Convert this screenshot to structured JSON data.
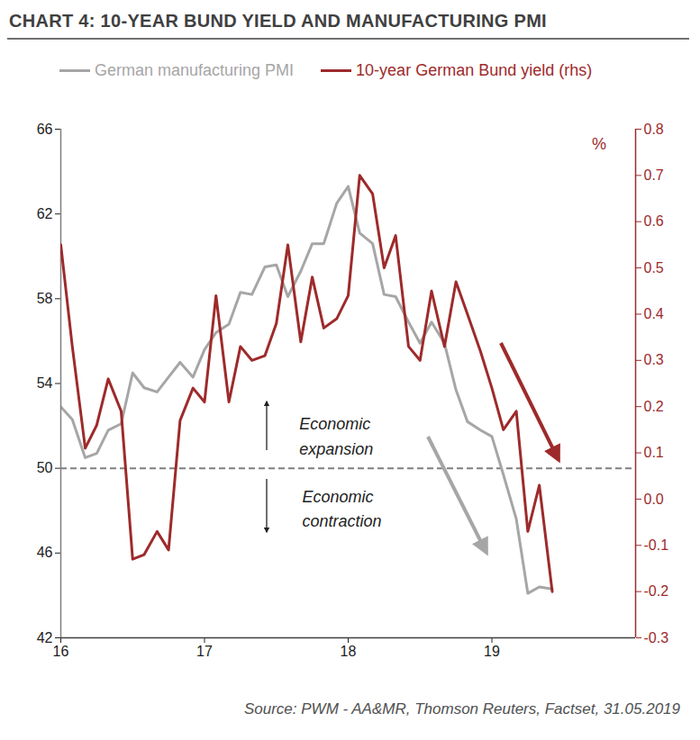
{
  "chart_data": {
    "type": "line",
    "title": "CHART 4: 10-YEAR BUND YIELD AND MANUFACTURING PMI",
    "source": "Source: PWM - AA&MR, Thomson Reuters, Factset, 31.05.2019",
    "x": [
      16,
      16.08,
      16.17,
      16.25,
      16.33,
      16.42,
      16.5,
      16.58,
      16.67,
      16.75,
      16.83,
      16.92,
      17,
      17.08,
      17.17,
      17.25,
      17.33,
      17.42,
      17.5,
      17.58,
      17.67,
      17.75,
      17.83,
      17.92,
      18,
      18.08,
      18.17,
      18.25,
      18.33,
      18.42,
      18.5,
      18.58,
      18.67,
      18.75,
      18.83,
      18.92,
      19,
      19.08,
      19.17,
      19.25,
      19.33,
      19.42
    ],
    "xlim": [
      16,
      20
    ],
    "xticks": [
      16,
      17,
      18,
      19
    ],
    "ylim": [
      42,
      66
    ],
    "yticks": [
      42,
      46,
      50,
      54,
      58,
      62,
      66
    ],
    "y2lim": [
      -0.3,
      0.8
    ],
    "y2ticks": [
      -0.3,
      -0.2,
      -0.1,
      {
        "value": 0,
        "label": "0.0"
      },
      0.1,
      0.2,
      0.3,
      0.4,
      0.5,
      0.6,
      0.7,
      0.8
    ],
    "y2label": "%",
    "reference_line": 50,
    "annotations": [
      {
        "text": "Economic\nexpansion",
        "x": 17.66,
        "y": 51.6
      },
      {
        "text": "Economic\ncontraction",
        "x": 17.68,
        "y": 48.2
      }
    ],
    "legend": "top",
    "grid": false,
    "series": [
      {
        "name": "German manufacturing PMI",
        "color": "#a6a6a6",
        "values": [
          52.9,
          52.3,
          50.5,
          50.7,
          51.8,
          52.1,
          54.5,
          53.8,
          53.6,
          54.3,
          55.0,
          54.3,
          55.6,
          56.4,
          56.8,
          58.3,
          58.2,
          59.5,
          59.6,
          58.1,
          59.3,
          60.6,
          60.6,
          62.5,
          63.3,
          61.1,
          60.6,
          58.2,
          58.1,
          56.9,
          55.9,
          56.9,
          55.9,
          53.7,
          52.2,
          51.8,
          51.5,
          49.7,
          47.6,
          44.1,
          44.4,
          44.3
        ]
      },
      {
        "name": "10-year German Bund yield (rhs)",
        "color": "#9e2a2b",
        "axis": "y2",
        "values": [
          0.55,
          0.33,
          0.11,
          0.16,
          0.26,
          0.19,
          -0.13,
          -0.12,
          -0.07,
          -0.11,
          0.17,
          0.24,
          0.21,
          0.44,
          0.21,
          0.33,
          0.3,
          0.31,
          0.38,
          0.55,
          0.34,
          0.48,
          0.37,
          0.39,
          0.44,
          0.7,
          0.66,
          0.5,
          0.57,
          0.33,
          0.3,
          0.45,
          0.33,
          0.47,
          0.4,
          0.32,
          0.24,
          0.15,
          0.19,
          -0.07,
          0.03,
          -0.2
        ]
      }
    ]
  }
}
